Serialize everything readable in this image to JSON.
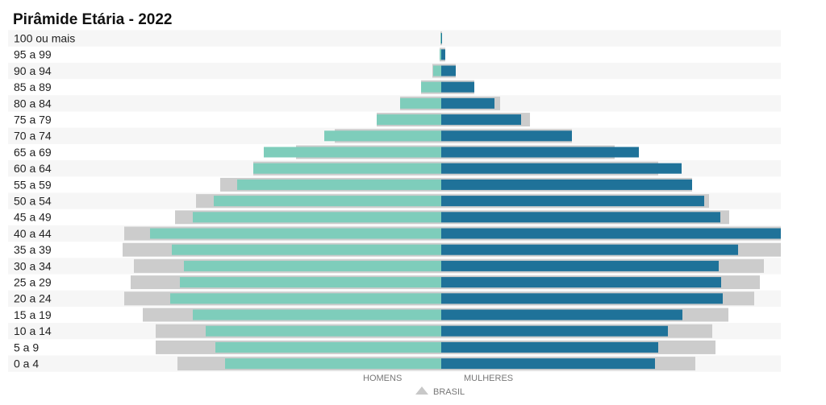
{
  "chart_data": {
    "type": "bar",
    "subtype": "population-pyramid",
    "title": "Pirâmide Etária - 2022",
    "categories": [
      "100 ou mais",
      "95 a 99",
      "90 a 94",
      "85 a 89",
      "80 a 84",
      "75 a 79",
      "70 a 74",
      "65 a 69",
      "60 a 64",
      "55 a 59",
      "50 a 54",
      "45 a 49",
      "40 a 44",
      "35 a 39",
      "30 a 34",
      "25 a 29",
      "20 a 24",
      "15 a 19",
      "10 a 14",
      "5 a 9",
      "0 a 4"
    ],
    "series": [
      {
        "name": "HOMENS",
        "color": "#7ecdbb",
        "values": [
          0.01,
          0.02,
          0.1,
          0.25,
          0.51,
          0.8,
          1.45,
          2.2,
          2.33,
          2.53,
          2.82,
          3.08,
          3.61,
          3.34,
          3.19,
          3.24,
          3.36,
          3.08,
          2.92,
          2.8,
          2.68
        ]
      },
      {
        "name": "MULHERES",
        "color": "#1f7299",
        "values": [
          0.01,
          0.05,
          0.18,
          0.41,
          0.66,
          0.99,
          1.62,
          2.45,
          2.98,
          3.11,
          3.26,
          3.46,
          4.21,
          3.68,
          3.44,
          3.47,
          3.49,
          2.99,
          2.81,
          2.69,
          2.65
        ]
      },
      {
        "name": "BRASIL",
        "side": "HOMENS",
        "color": "#cccccc",
        "values": [
          0.01,
          0.02,
          0.11,
          0.25,
          0.51,
          0.8,
          1.32,
          1.8,
          2.33,
          2.74,
          3.04,
          3.3,
          3.93,
          3.95,
          3.81,
          3.85,
          3.93,
          3.7,
          3.54,
          3.54,
          3.27
        ]
      },
      {
        "name": "BRASIL",
        "side": "MULHERES",
        "color": "#cccccc",
        "values": [
          0.01,
          0.05,
          0.18,
          0.41,
          0.73,
          1.1,
          1.62,
          2.15,
          2.69,
          3.11,
          3.32,
          3.57,
          4.21,
          4.21,
          4.0,
          3.95,
          3.88,
          3.56,
          3.36,
          3.4,
          3.15
        ]
      }
    ],
    "legend": {
      "left": "HOMENS",
      "right": "MULHERES",
      "reference": "BRASIL",
      "placement": "bottom-center"
    },
    "xlabel": "",
    "ylabel": "",
    "grid": false
  }
}
